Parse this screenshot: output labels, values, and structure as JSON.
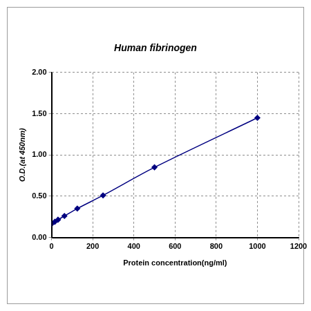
{
  "chart_data": {
    "type": "line",
    "title": "Human fibrinogen",
    "x_label": "Protein concentration(ng/ml)",
    "y_label": "O.D.(at 450nm)",
    "x": [
      0,
      15.6,
      31.25,
      62.5,
      125,
      250,
      500,
      1000
    ],
    "values": [
      0.165,
      0.19,
      0.215,
      0.26,
      0.35,
      0.51,
      0.85,
      1.45
    ],
    "color": "#000080",
    "marker": "diamond",
    "line_style": "solid",
    "xlim": [
      0,
      1200
    ],
    "xticks": [
      0,
      200,
      400,
      600,
      800,
      1000,
      1200
    ],
    "ylim": [
      0,
      2
    ],
    "yticks": [
      {
        "value": 0,
        "label": "0.00"
      },
      {
        "value": 0.5,
        "label": "0.50"
      },
      {
        "value": 1,
        "label": "1.00"
      },
      {
        "value": 1.5,
        "label": "1.50"
      },
      {
        "value": 2,
        "label": "2.00"
      }
    ],
    "grid": true
  }
}
